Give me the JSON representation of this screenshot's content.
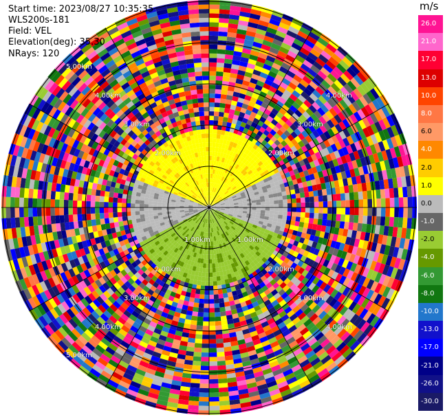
{
  "header": {
    "start_time": "Start time: 2023/08/27 10:35:35",
    "instrument": "WLS200s-181",
    "field": "Field: VEL",
    "elevation": "Elevation(deg): 35.30",
    "nrays": "NRays: 120"
  },
  "ring_labels": {
    "r1": "1.00km",
    "r2": "2.00km",
    "r3": "3.00km",
    "r4": "4.00km",
    "r5": "5.00km"
  },
  "colorbar": {
    "unit": "m/s",
    "ticks": [
      "26.0",
      "21.0",
      "17.0",
      "13.0",
      "10.0",
      "8.0",
      "6.0",
      "4.0",
      "2.0",
      "1.0",
      "0.0",
      "-1.0",
      "-2.0",
      "-4.0",
      "-6.0",
      "-8.0",
      "-10.0",
      "-13.0",
      "-17.0",
      "-21.0",
      "-26.0",
      "-30.0"
    ],
    "colors": [
      "#ff1493",
      "#ff66cc",
      "#ff0033",
      "#dd0000",
      "#ff4400",
      "#ff7744",
      "#ff9966",
      "#ff8800",
      "#ffcc00",
      "#ffff00",
      "#bbbbbb",
      "#666666",
      "#99cc33",
      "#669900",
      "#339933",
      "#117711",
      "#2277cc",
      "#1111cc",
      "#0000ff",
      "#000088",
      "#111188",
      "#1a1a66"
    ]
  }
}
